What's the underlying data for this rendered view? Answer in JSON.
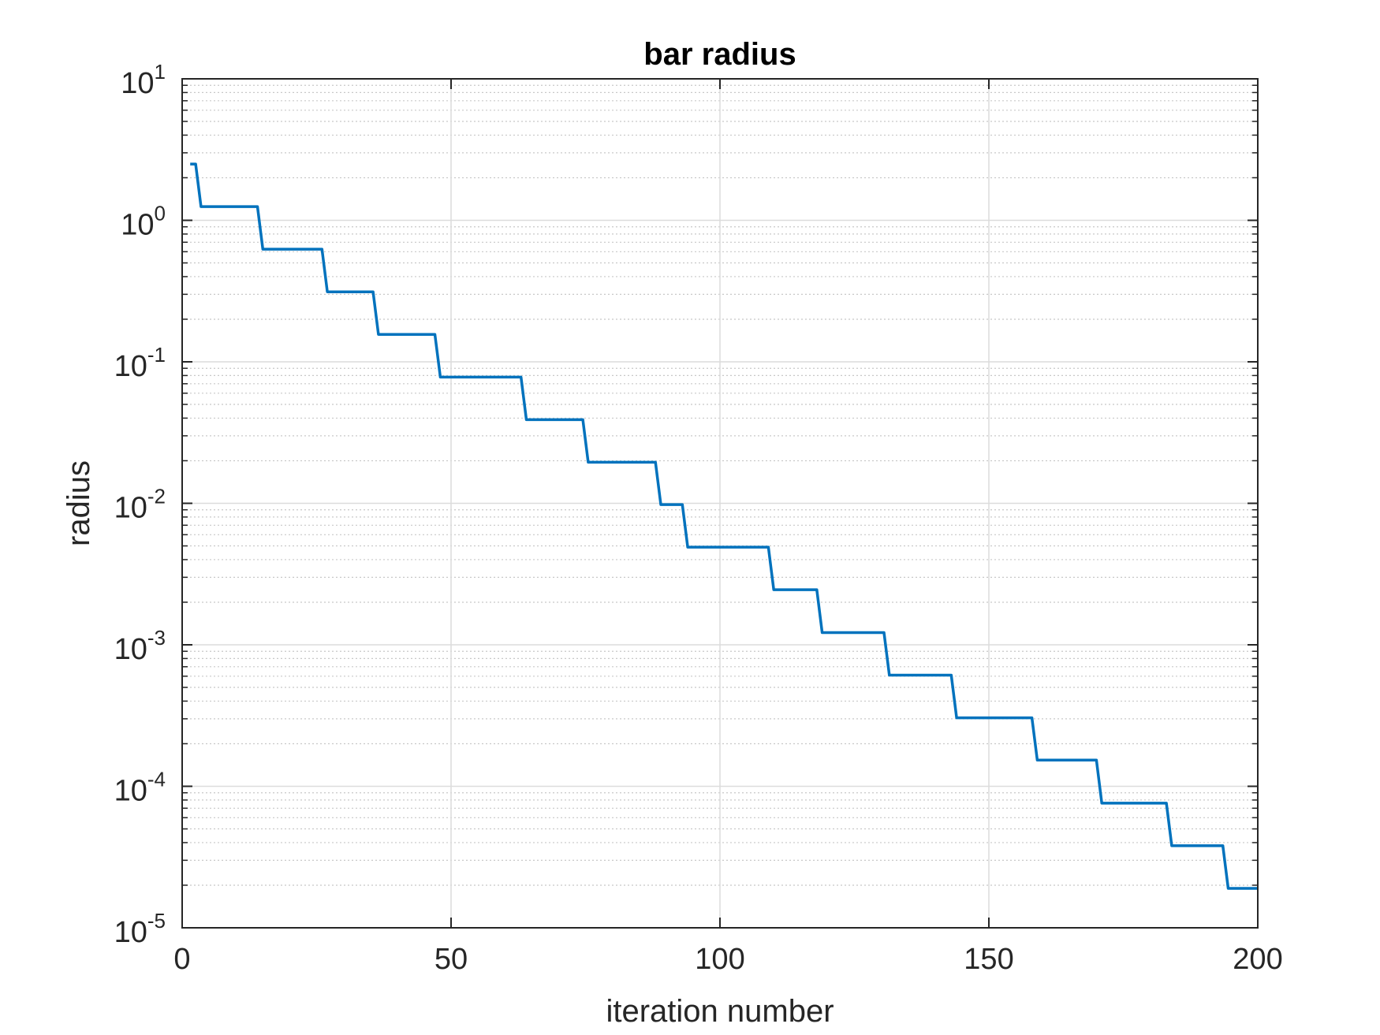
{
  "chart_data": {
    "type": "line",
    "title": "bar radius",
    "xlabel": "iteration number",
    "ylabel": "radius",
    "xlim": [
      0,
      200
    ],
    "ylim": [
      1e-05,
      10
    ],
    "yscale": "log",
    "grid": true,
    "minor_grid": true,
    "line_color": "#0072BD",
    "x_ticks": [
      {
        "value": 0,
        "label": "0"
      },
      {
        "value": 50,
        "label": "50"
      },
      {
        "value": 100,
        "label": "100"
      },
      {
        "value": 150,
        "label": "150"
      },
      {
        "value": 200,
        "label": "200"
      }
    ],
    "y_ticks": [
      {
        "value": 10,
        "base": "10",
        "exponent": "1"
      },
      {
        "value": 1,
        "base": "10",
        "exponent": "0"
      },
      {
        "value": 0.1,
        "base": "10",
        "exponent": "-1"
      },
      {
        "value": 0.01,
        "base": "10",
        "exponent": "-2"
      },
      {
        "value": 0.001,
        "base": "10",
        "exponent": "-3"
      },
      {
        "value": 0.0001,
        "base": "10",
        "exponent": "-4"
      },
      {
        "value": 1e-05,
        "base": "10",
        "exponent": "-5"
      }
    ],
    "series": [
      {
        "x": [
          1.5,
          2.5,
          3.5,
          14,
          15,
          26,
          27,
          35.5,
          36.5,
          47,
          48,
          63,
          64,
          74.5,
          75.5,
          88,
          89,
          93,
          94,
          109,
          110,
          118,
          119,
          130.5,
          131.5,
          143,
          144,
          158,
          159,
          170,
          171,
          183,
          184,
          193.5,
          194.5,
          200
        ],
        "y": [
          2.5,
          2.5,
          1.25,
          1.25,
          0.625,
          0.625,
          0.3125,
          0.3125,
          0.15625,
          0.15625,
          0.078,
          0.078,
          0.039,
          0.039,
          0.0195,
          0.0195,
          0.0098,
          0.0098,
          0.0049,
          0.0049,
          0.00245,
          0.00245,
          0.00122,
          0.00122,
          0.00061,
          0.00061,
          0.000305,
          0.000305,
          0.000153,
          0.000153,
          7.6e-05,
          7.6e-05,
          3.8e-05,
          3.8e-05,
          1.9e-05,
          1.9e-05
        ]
      }
    ]
  }
}
